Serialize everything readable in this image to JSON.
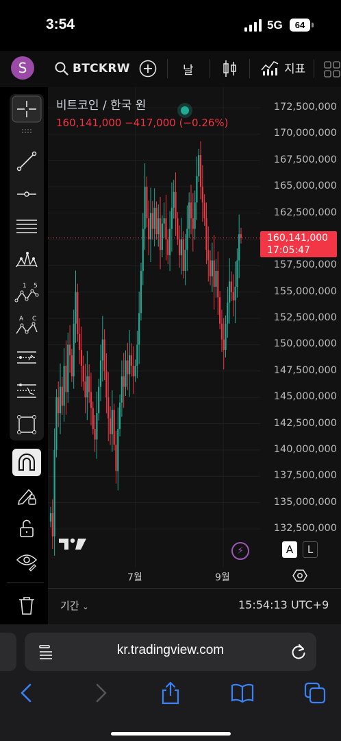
{
  "status_bar": {
    "time": "3:54",
    "network": "5G",
    "battery": "64"
  },
  "toolbar": {
    "avatar_letter": "S",
    "symbol": "BTCKRW",
    "interval": "날",
    "indicators_label": "지표"
  },
  "chart": {
    "legend_name": "비트코인 / 한국 원",
    "legend_price": "160,141,000",
    "legend_change": "−417,000 (−0.26%)",
    "last_price": "160,141,000",
    "countdown": "17:05:47",
    "colors": {
      "up": "#22ab94",
      "down": "#f23645",
      "background": "#121212",
      "price_line": "#f23645"
    },
    "y_axis_labels": [
      "172,500,000",
      "170,000,000",
      "167,500,000",
      "165,000,000",
      "162,500,000",
      "160,000,000",
      "157,500,000",
      "155,000,000",
      "152,500,000",
      "150,000,000",
      "147,500,000",
      "145,000,000",
      "142,500,000",
      "140,000,000",
      "137,500,000",
      "135,000,000",
      "132,500,000"
    ],
    "x_axis_labels": [
      "7월",
      "9월"
    ],
    "auto_button": "A",
    "log_button": "L",
    "range_label": "기간",
    "timezone_time": "15:54:13 UTC+9"
  },
  "chart_data": {
    "type": "candlestick",
    "ylim": [
      131000000,
      174000000
    ],
    "x_labels": [
      "7월",
      "9월"
    ],
    "close_series": [
      134000000,
      131800000,
      140000000,
      145000000,
      143500000,
      146000000,
      144200000,
      148000000,
      145500000,
      150000000,
      149000000,
      147000000,
      152000000,
      155000000,
      151000000,
      149500000,
      148000000,
      146500000,
      145000000,
      147000000,
      145500000,
      144000000,
      142000000,
      141000000,
      143500000,
      146000000,
      148500000,
      150500000,
      147500000,
      145000000,
      143000000,
      141500000,
      143800000,
      140500000,
      138000000,
      142000000,
      144500000,
      147000000,
      146000000,
      148500000,
      147200000,
      149000000,
      148000000,
      147000000,
      148000000,
      150000000,
      153000000,
      157000000,
      161000000,
      165000000,
      162000000,
      160000000,
      162500000,
      161000000,
      163000000,
      160500000,
      162000000,
      159000000,
      161500000,
      162000000,
      160000000,
      158500000,
      161000000,
      163000000,
      164500000,
      162000000,
      160000000,
      158500000,
      160000000,
      157000000,
      159000000,
      161000000,
      163500000,
      162000000,
      161000000,
      163500000,
      166000000,
      168000000,
      165000000,
      163500000,
      162000000,
      159000000,
      158000000,
      156500000,
      158000000,
      155500000,
      157000000,
      154500000,
      152000000,
      150500000,
      149500000,
      152000000,
      154000000,
      156000000,
      155000000,
      154200000,
      155500000,
      158000000,
      160500000,
      160141000
    ]
  }
}
